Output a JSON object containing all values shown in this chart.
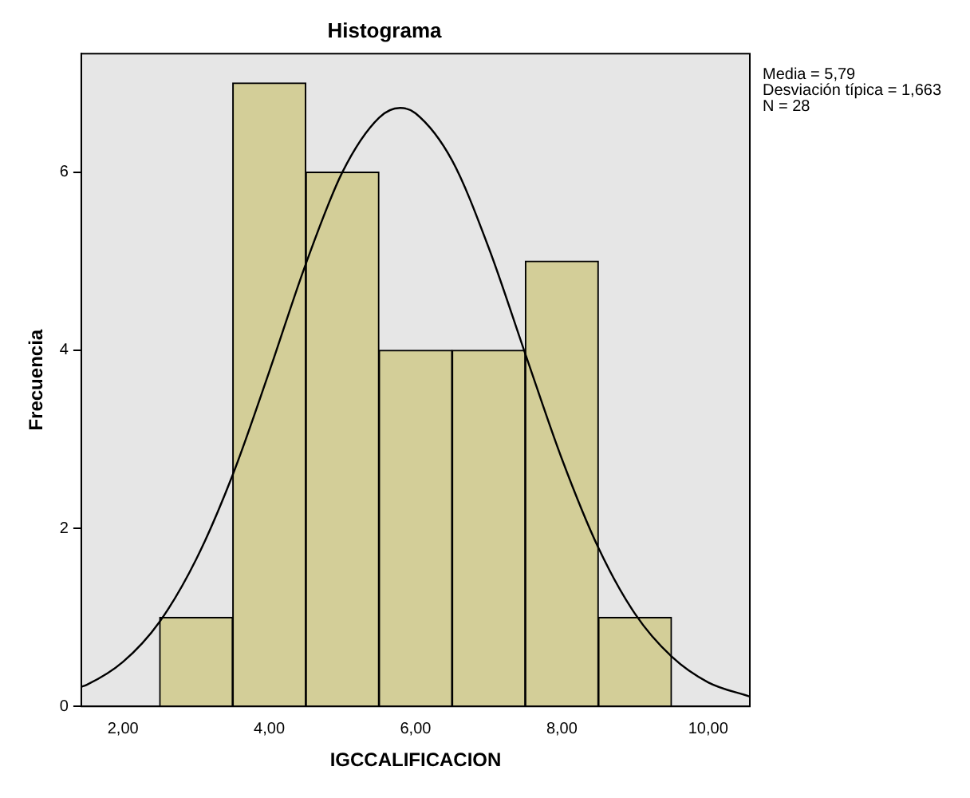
{
  "chart_data": {
    "type": "histogram",
    "title": "Histograma",
    "xlabel": "IGCCALIFICACION",
    "ylabel": "Frecuencia",
    "bins": [
      2.5,
      3.5,
      4.5,
      5.5,
      6.5,
      7.5,
      8.5,
      9.5
    ],
    "values": [
      1,
      7,
      6,
      4,
      4,
      5,
      1
    ],
    "color": "#d3ce98",
    "series": [
      {
        "type": "line",
        "color": "#000000",
        "x": [
          1.43,
          1.5,
          2,
          2.5,
          3,
          3.5,
          4,
          4.5,
          5,
          5.5,
          5.79,
          6,
          6.5,
          7,
          7.5,
          8,
          8.5,
          9,
          9.5,
          10,
          10.57
        ],
        "values": [
          0.22,
          0.24,
          0.5,
          0.95,
          1.65,
          2.6,
          3.76,
          4.97,
          6.0,
          6.61,
          6.72,
          6.66,
          6.13,
          5.15,
          3.96,
          2.78,
          1.78,
          1.04,
          0.56,
          0.27,
          0.11
        ]
      }
    ],
    "xlim": [
      1.43,
      10.57
    ],
    "xticks": [
      {
        "value": 2,
        "label": "2,00"
      },
      {
        "value": 4,
        "label": "4,00"
      },
      {
        "value": 6,
        "label": "6,00"
      },
      {
        "value": 8,
        "label": "8,00"
      },
      {
        "value": 10,
        "label": "10,00"
      }
    ],
    "ylim": [
      0,
      7.33
    ],
    "yticks": [
      0,
      2,
      4,
      6
    ],
    "annotations": [
      "Media = 5,79",
      "Desviación típica = 1,663",
      "N = 28"
    ],
    "grid": false,
    "legend": false,
    "marker": "none",
    "line_style": "solid"
  }
}
